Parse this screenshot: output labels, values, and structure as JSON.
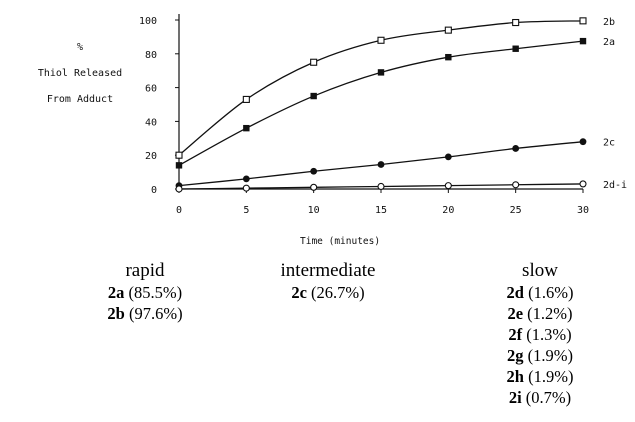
{
  "chart_data": {
    "type": "line",
    "title": "",
    "ylabel": [
      "%",
      "Thiol Released",
      "From Adduct"
    ],
    "xlabel": "Time (minutes)",
    "xlim": [
      0,
      30
    ],
    "ylim": [
      0,
      100
    ],
    "xticks": [
      "0",
      "5",
      "10",
      "15",
      "20",
      "25",
      "30"
    ],
    "yticks": [
      "0",
      "20",
      "40",
      "60",
      "80",
      "100"
    ],
    "grid": false,
    "series": [
      {
        "name": "2b",
        "marker": "open-square",
        "x": [
          0,
          5,
          10,
          15,
          20,
          25,
          30
        ],
        "y": [
          20,
          53,
          75,
          88,
          94,
          98.5,
          99.5
        ]
      },
      {
        "name": "2a",
        "marker": "filled-square",
        "x": [
          0,
          5,
          10,
          15,
          20,
          25,
          30
        ],
        "y": [
          14,
          36,
          55,
          69,
          78,
          83,
          87.5
        ]
      },
      {
        "name": "2c",
        "marker": "filled-circle",
        "x": [
          0,
          5,
          10,
          15,
          20,
          25,
          30
        ],
        "y": [
          2,
          6,
          10.5,
          14.5,
          19,
          24,
          28
        ]
      },
      {
        "name": "2d-i",
        "marker": "open-circle",
        "x": [
          0,
          5,
          10,
          15,
          20,
          25,
          30
        ],
        "y": [
          0,
          0.5,
          1,
          1.5,
          2,
          2.5,
          3
        ]
      }
    ]
  },
  "categories": {
    "rapid": {
      "heading": "rapid",
      "items": [
        {
          "id": "2a",
          "pct": "(85.5%)"
        },
        {
          "id": "2b",
          "pct": "(97.6%)"
        }
      ]
    },
    "intermediate": {
      "heading": "intermediate",
      "items": [
        {
          "id": "2c",
          "pct": "(26.7%)"
        }
      ]
    },
    "slow": {
      "heading": "slow",
      "items": [
        {
          "id": "2d",
          "pct": "(1.6%)"
        },
        {
          "id": "2e",
          "pct": "(1.2%)"
        },
        {
          "id": "2f",
          "pct": "(1.3%)"
        },
        {
          "id": "2g",
          "pct": "(1.9%)"
        },
        {
          "id": "2h",
          "pct": "(1.9%)"
        },
        {
          "id": "2i",
          "pct": "(0.7%)"
        }
      ]
    }
  }
}
